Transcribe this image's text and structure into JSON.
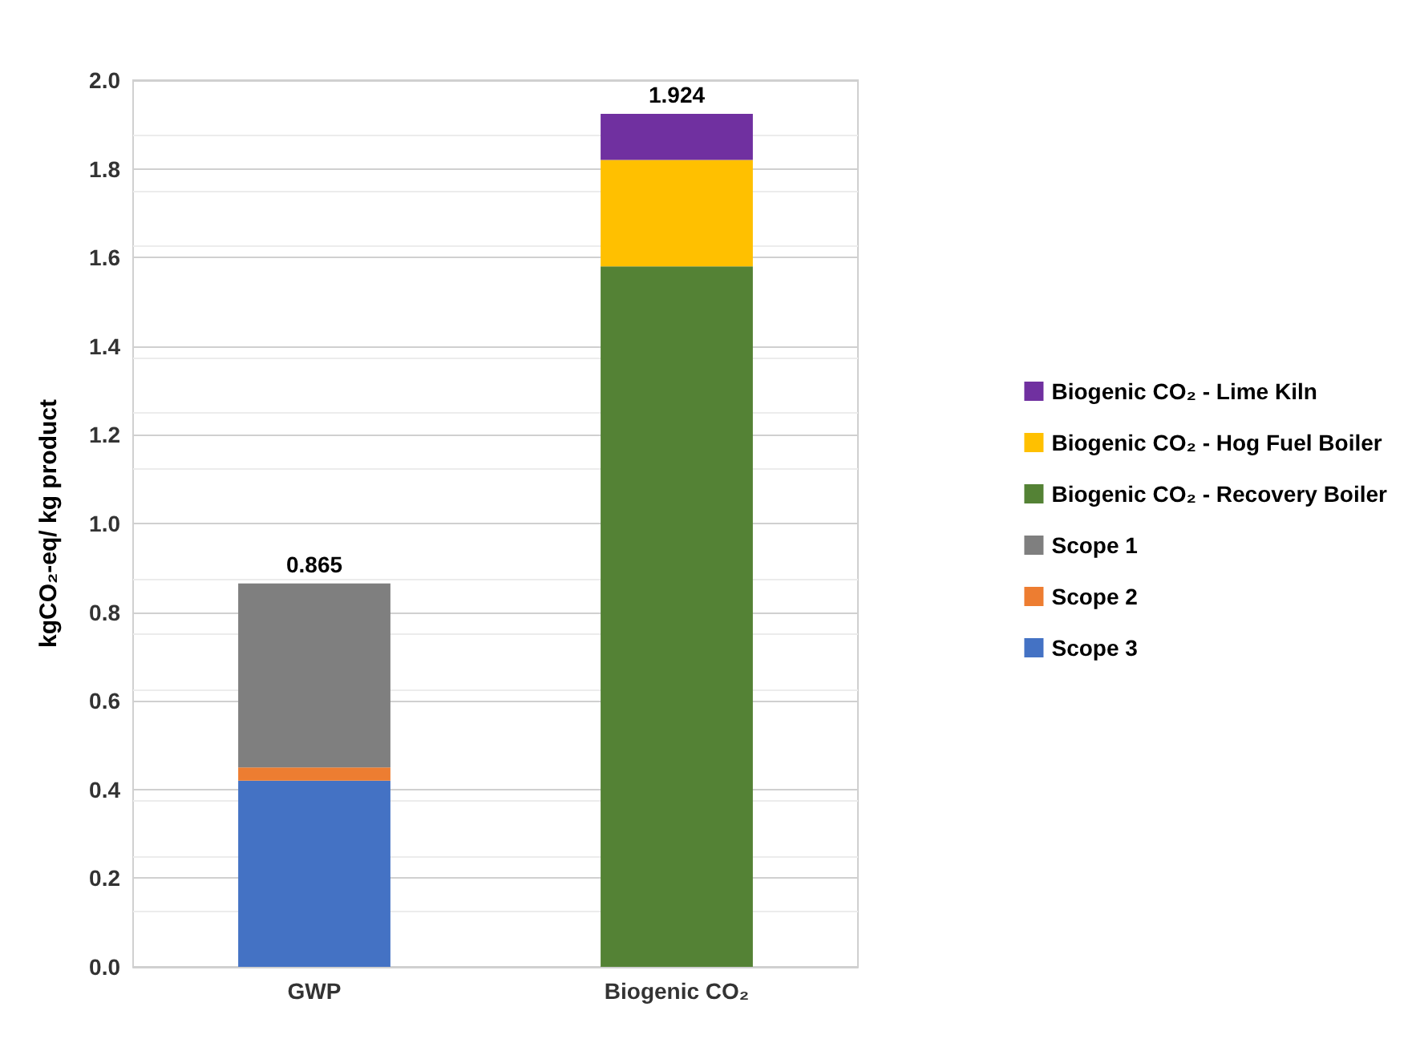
{
  "chart_data": {
    "type": "bar",
    "stacked": true,
    "ylabel": "kgCO₂-eq/ kg product",
    "categories": [
      "GWP",
      "Biogenic CO₂"
    ],
    "series": [
      {
        "name": "Scope 3",
        "color": "#4472c4",
        "values": [
          0.42,
          null
        ]
      },
      {
        "name": "Scope 2",
        "color": "#ed7d31",
        "values": [
          0.03,
          null
        ]
      },
      {
        "name": "Scope 1",
        "color": "#7f7f7f",
        "values": [
          0.415,
          null
        ]
      },
      {
        "name": "Biogenic CO₂ - Recovery Boiler",
        "color": "#548235",
        "values": [
          null,
          1.58
        ]
      },
      {
        "name": "Biogenic CO₂ - Hog Fuel Boiler",
        "color": "#ffc000",
        "values": [
          null,
          0.24
        ]
      },
      {
        "name": "Biogenic CO₂ - Lime Kiln",
        "color": "#7030a0",
        "values": [
          null,
          0.104
        ]
      }
    ],
    "totals": [
      "0.865",
      "1.924"
    ],
    "ylim": [
      0,
      2
    ],
    "yticks": [
      {
        "value": 0,
        "label": "0.0"
      },
      {
        "value": 0.2,
        "label": "0.2"
      },
      {
        "value": 0.4,
        "label": "0.4"
      },
      {
        "value": 0.6,
        "label": "0.6"
      },
      {
        "value": 0.8,
        "label": "0.8"
      },
      {
        "value": 1,
        "label": "1.0"
      },
      {
        "value": 1.2,
        "label": "1.2"
      },
      {
        "value": 1.4,
        "label": "1.4"
      },
      {
        "value": 1.6,
        "label": "1.6"
      },
      {
        "value": 1.8,
        "label": "1.8"
      },
      {
        "value": 2,
        "label": "2.0"
      }
    ],
    "grid": "y",
    "legend": "right"
  }
}
